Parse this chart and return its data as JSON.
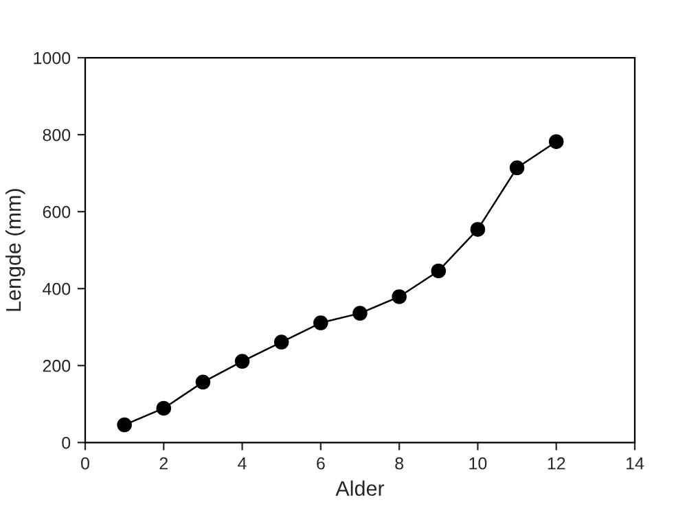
{
  "chart_data": {
    "type": "line",
    "xlabel": "Alder",
    "ylabel": "Lengde (mm)",
    "x": [
      1,
      2,
      3,
      4,
      5,
      6,
      7,
      8,
      9,
      10,
      11,
      12
    ],
    "series": [
      {
        "color": "#000000",
        "values": [
          46,
          89,
          157,
          211,
          261,
          311,
          336,
          379,
          446,
          554,
          714,
          782
        ]
      }
    ],
    "xlim": [
      0,
      14
    ],
    "xticks": [
      0,
      2,
      4,
      6,
      8,
      10,
      12,
      14
    ],
    "ylim": [
      0,
      1000
    ],
    "yticks": [
      0,
      200,
      400,
      600,
      800,
      1000
    ],
    "grid": false,
    "marker": "circle",
    "line_style": "solid"
  }
}
